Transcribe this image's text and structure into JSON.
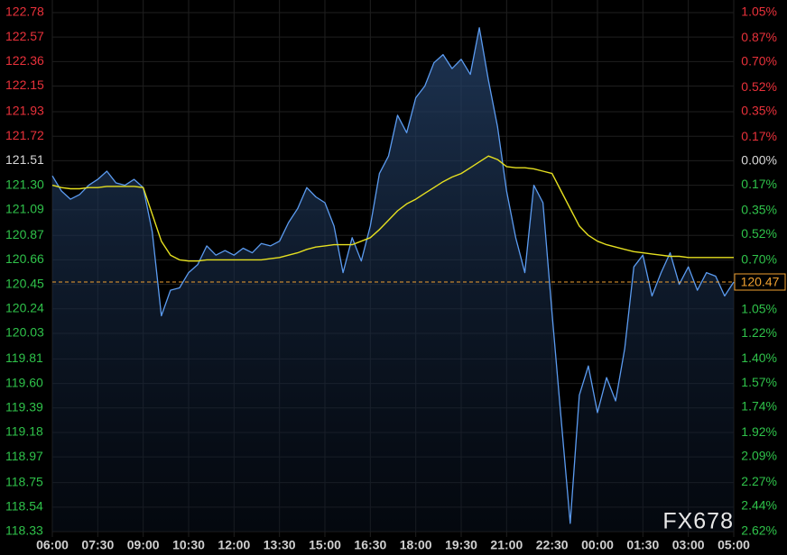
{
  "chart_data": {
    "type": "line",
    "watermark": "FX678",
    "background": "#000000",
    "grid": true,
    "grid_color": "#1f1f1f",
    "base": 121.51,
    "up_color": "#e8313a",
    "flat_color": "#d8d8d8",
    "down_color": "#2fc24a",
    "last_value": 120.47,
    "last_label": "120.47",
    "last_color": "#f0a030",
    "xlim": [
      0,
      15
    ],
    "xticks": [
      {
        "value": 0,
        "label": "06:00"
      },
      {
        "value": 1,
        "label": "07:30"
      },
      {
        "value": 2,
        "label": "09:00"
      },
      {
        "value": 3,
        "label": "10:30"
      },
      {
        "value": 4,
        "label": "12:00"
      },
      {
        "value": 5,
        "label": "13:30"
      },
      {
        "value": 6,
        "label": "15:00"
      },
      {
        "value": 7,
        "label": "16:30"
      },
      {
        "value": 8,
        "label": "18:00"
      },
      {
        "value": 9,
        "label": "19:30"
      },
      {
        "value": 10,
        "label": "21:00"
      },
      {
        "value": 11,
        "label": "22:30"
      },
      {
        "value": 12,
        "label": "00:00"
      },
      {
        "value": 13,
        "label": "01:30"
      },
      {
        "value": 14,
        "label": "03:00"
      },
      {
        "value": 15,
        "label": "05:00"
      }
    ],
    "ylim": [
      118.33,
      122.78
    ],
    "yticks": [
      {
        "value": 122.78,
        "label": "122.78"
      },
      {
        "value": 122.57,
        "label": "122.57"
      },
      {
        "value": 122.36,
        "label": "122.36"
      },
      {
        "value": 122.15,
        "label": "122.15"
      },
      {
        "value": 121.93,
        "label": "121.93"
      },
      {
        "value": 121.72,
        "label": "121.72"
      },
      {
        "value": 121.51,
        "label": "121.51"
      },
      {
        "value": 121.3,
        "label": "121.30"
      },
      {
        "value": 121.09,
        "label": "121.09"
      },
      {
        "value": 120.87,
        "label": "120.87"
      },
      {
        "value": 120.66,
        "label": "120.66"
      },
      {
        "value": 120.45,
        "label": "120.45"
      },
      {
        "value": 120.24,
        "label": "120.24"
      },
      {
        "value": 120.03,
        "label": "120.03"
      },
      {
        "value": 119.81,
        "label": "119.81"
      },
      {
        "value": 119.6,
        "label": "119.60"
      },
      {
        "value": 119.39,
        "label": "119.39"
      },
      {
        "value": 119.18,
        "label": "119.18"
      },
      {
        "value": 118.97,
        "label": "118.97"
      },
      {
        "value": 118.75,
        "label": "118.75"
      },
      {
        "value": 118.54,
        "label": "118.54"
      },
      {
        "value": 118.33,
        "label": "118.33"
      }
    ],
    "y2lim": [
      -2.62,
      1.05
    ],
    "y2ticks": [
      {
        "value": 1.05,
        "label": "1.05%"
      },
      {
        "value": 0.87,
        "label": "0.87%"
      },
      {
        "value": 0.7,
        "label": "0.70%"
      },
      {
        "value": 0.52,
        "label": "0.52%"
      },
      {
        "value": 0.35,
        "label": "0.35%"
      },
      {
        "value": 0.17,
        "label": "0.17%"
      },
      {
        "value": 0,
        "label": "0.00%"
      },
      {
        "value": -0.17,
        "label": "0.17%"
      },
      {
        "value": -0.35,
        "label": "0.35%"
      },
      {
        "value": -0.52,
        "label": "0.52%"
      },
      {
        "value": -0.7,
        "label": "0.70%"
      },
      {
        "value": -0.87,
        "label": "0.87%"
      },
      {
        "value": -1.05,
        "label": "1.05%"
      },
      {
        "value": -1.22,
        "label": "1.22%"
      },
      {
        "value": -1.4,
        "label": "1.40%"
      },
      {
        "value": -1.57,
        "label": "1.57%"
      },
      {
        "value": -1.74,
        "label": "1.74%"
      },
      {
        "value": -1.92,
        "label": "1.92%"
      },
      {
        "value": -2.09,
        "label": "2.09%"
      },
      {
        "value": -2.27,
        "label": "2.27%"
      },
      {
        "value": -2.44,
        "label": "2.44%"
      },
      {
        "value": -2.62,
        "label": "2.62%"
      }
    ],
    "x": [
      0,
      0.2,
      0.4,
      0.6,
      0.8,
      1,
      1.2,
      1.4,
      1.6,
      1.8,
      2,
      2.2,
      2.4,
      2.6,
      2.8,
      3,
      3.2,
      3.4,
      3.6,
      3.8,
      4,
      4.2,
      4.4,
      4.6,
      4.8,
      5,
      5.2,
      5.4,
      5.6,
      5.8,
      6,
      6.2,
      6.4,
      6.6,
      6.8,
      7,
      7.2,
      7.4,
      7.6,
      7.8,
      8,
      8.2,
      8.4,
      8.6,
      8.8,
      9,
      9.2,
      9.4,
      9.6,
      9.8,
      10,
      10.2,
      10.4,
      10.6,
      10.8,
      11,
      11.2,
      11.4,
      11.6,
      11.8,
      12,
      12.2,
      12.4,
      12.6,
      12.8,
      13,
      13.2,
      13.4,
      13.6,
      13.8,
      14,
      14.2,
      14.4,
      14.6,
      14.8,
      15
    ],
    "series": [
      {
        "color": "#5b9bf0",
        "area": true,
        "values": [
          121.38,
          121.25,
          121.18,
          121.22,
          121.3,
          121.35,
          121.42,
          121.32,
          121.3,
          121.35,
          121.28,
          120.9,
          120.18,
          120.4,
          120.42,
          120.55,
          120.62,
          120.78,
          120.7,
          120.74,
          120.7,
          120.76,
          120.72,
          120.8,
          120.78,
          120.82,
          120.98,
          121.1,
          121.28,
          121.2,
          121.15,
          120.95,
          120.55,
          120.85,
          120.65,
          120.95,
          121.4,
          121.55,
          121.9,
          121.75,
          122.05,
          122.15,
          122.35,
          122.42,
          122.3,
          122.38,
          122.25,
          122.65,
          122.2,
          121.8,
          121.25,
          120.85,
          120.55,
          121.3,
          121.15,
          120.2,
          119.3,
          118.4,
          119.5,
          119.75,
          119.35,
          119.65,
          119.45,
          119.9,
          120.6,
          120.7,
          120.35,
          120.55,
          120.72,
          120.45,
          120.6,
          120.4,
          120.55,
          120.52,
          120.35,
          120.47
        ]
      },
      {
        "color": "#e6e020",
        "area": false,
        "values": [
          121.3,
          121.28,
          121.27,
          121.27,
          121.28,
          121.28,
          121.29,
          121.29,
          121.29,
          121.29,
          121.28,
          121.05,
          120.82,
          120.7,
          120.66,
          120.65,
          120.65,
          120.66,
          120.66,
          120.66,
          120.66,
          120.66,
          120.66,
          120.66,
          120.67,
          120.68,
          120.7,
          120.72,
          120.75,
          120.77,
          120.78,
          120.79,
          120.79,
          120.79,
          120.82,
          120.85,
          120.92,
          121.0,
          121.08,
          121.14,
          121.18,
          121.23,
          121.28,
          121.33,
          121.37,
          121.4,
          121.45,
          121.5,
          121.55,
          121.52,
          121.46,
          121.45,
          121.45,
          121.44,
          121.42,
          121.4,
          121.25,
          121.1,
          120.95,
          120.87,
          120.82,
          120.79,
          120.77,
          120.75,
          120.73,
          120.72,
          120.71,
          120.7,
          120.69,
          120.69,
          120.68,
          120.68,
          120.68,
          120.68,
          120.68,
          120.68
        ]
      }
    ]
  }
}
